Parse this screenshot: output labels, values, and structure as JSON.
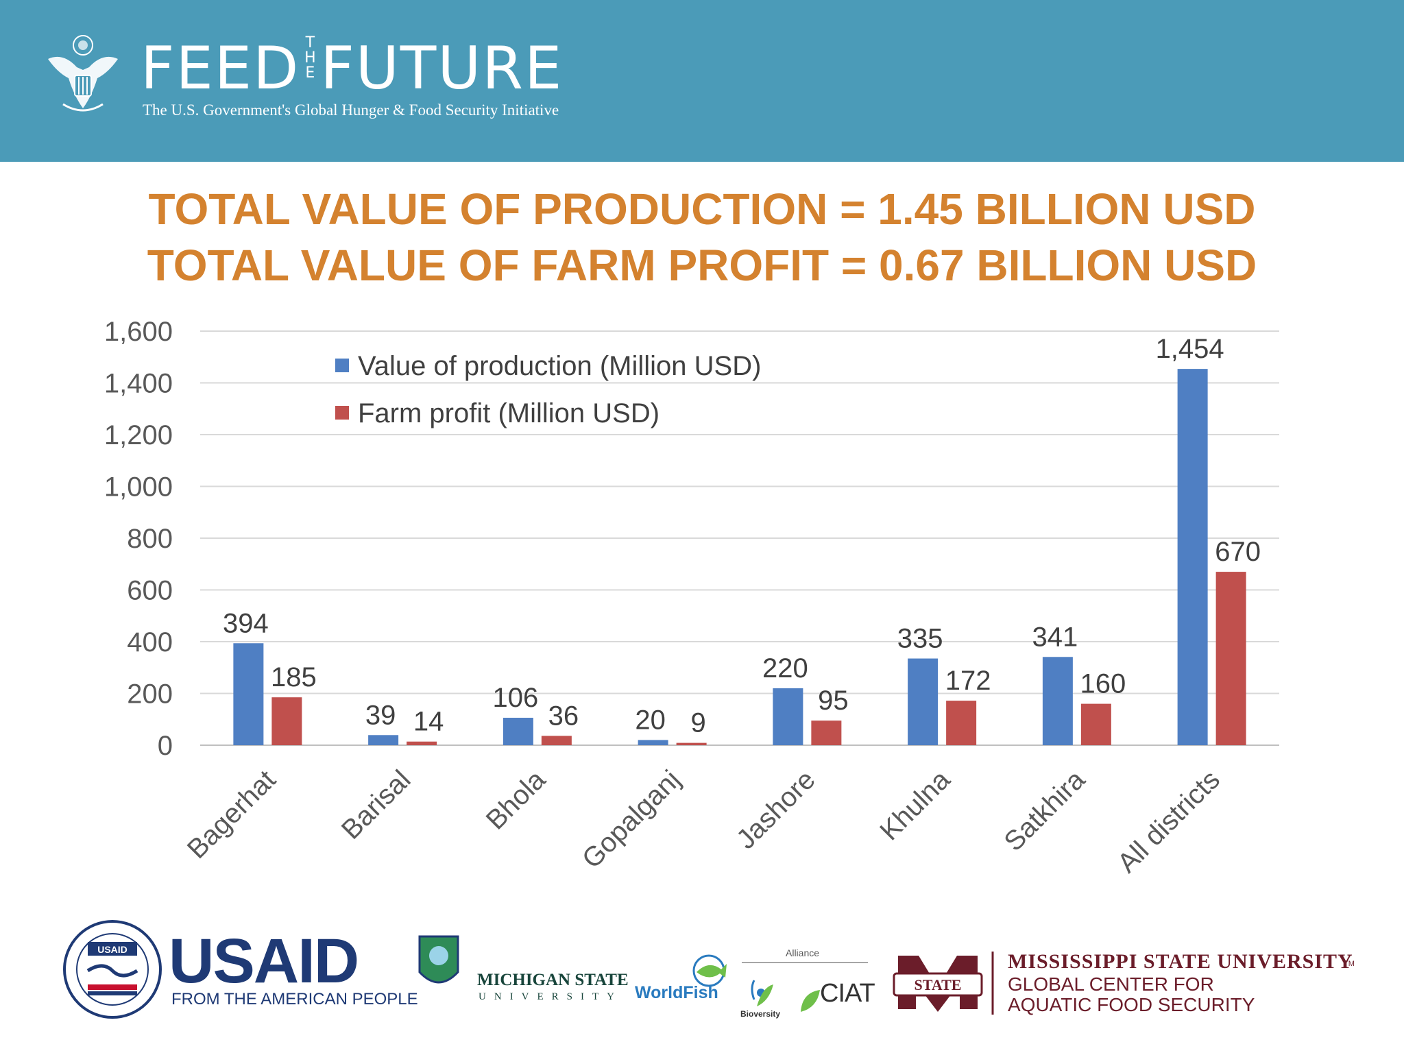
{
  "header": {
    "brand_feed": "FEED",
    "brand_the": [
      "T",
      "H",
      "E"
    ],
    "brand_future": "FUTURE",
    "tagline": "The U.S. Government's Global Hunger & Food Security Initiative"
  },
  "headline": {
    "line1": "TOTAL VALUE OF PRODUCTION = 1.45 BILLION USD",
    "line2": "TOTAL VALUE OF FARM PROFIT = 0.67 BILLION USD"
  },
  "chart_data": {
    "type": "bar",
    "categories": [
      "Bagerhat",
      "Barisal",
      "Bhola",
      "Gopalganj",
      "Jashore",
      "Khulna",
      "Satkhira",
      "All districts"
    ],
    "series": [
      {
        "name": "Value of production (Million USD)",
        "values": [
          394,
          39,
          106,
          20,
          220,
          335,
          341,
          1454
        ],
        "color": "#4f7fc3"
      },
      {
        "name": "Farm profit (Million USD)",
        "values": [
          185,
          14,
          36,
          9,
          95,
          172,
          160,
          670
        ],
        "color": "#c0504d"
      }
    ],
    "data_labels": [
      [
        "394",
        "39",
        "106",
        "20",
        "220",
        "335",
        "341",
        "1,454"
      ],
      [
        "185",
        "14",
        "36",
        "9",
        "95",
        "172",
        "160",
        "670"
      ]
    ],
    "yticks": [
      "0",
      "200",
      "400",
      "600",
      "800",
      "1,000",
      "1,200",
      "1,400",
      "1,600"
    ],
    "ylim": [
      0,
      1600
    ],
    "grid": true,
    "legend_position": "top-left"
  },
  "footer": {
    "usaid": "USAID",
    "usaid_tagline": "FROM THE AMERICAN PEOPLE",
    "usaid_seal_text": "USAID",
    "msu_line1": "MICHIGAN STATE",
    "msu_line2": "UNIVERSITY",
    "worldfish": "WorldFish",
    "alliance": "Alliance",
    "bioversity": "Bioversity",
    "ciat": "CIAT",
    "state_badge": "STATE",
    "msstate_line1": "MISSISSIPPI STATE UNIVERSITY",
    "msstate_tm": "TM",
    "msstate_line2": "GLOBAL CENTER FOR",
    "msstate_line3": "AQUATIC FOOD SECURITY"
  },
  "colors": {
    "header_bg": "#4b9bb8",
    "headline": "#d4822f",
    "usaid_blue": "#1f3a75",
    "usaid_red": "#c8102e",
    "msstate_maroon": "#6b1d2a"
  }
}
